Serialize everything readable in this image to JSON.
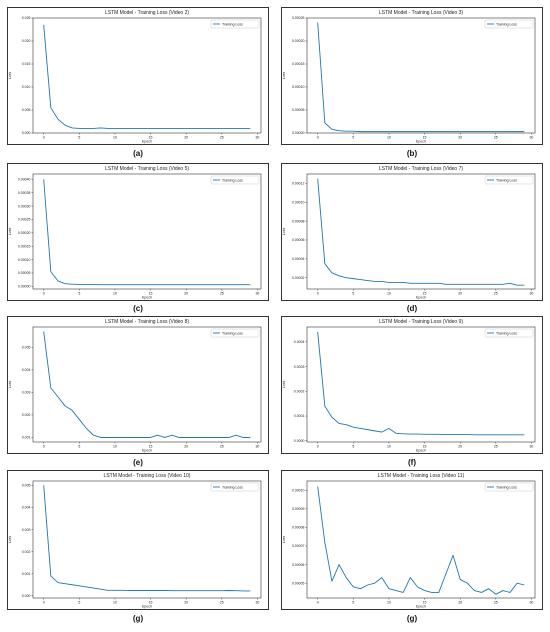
{
  "chart_data": [
    {
      "type": "line",
      "title": "LSTM Model - Training Loss (Video 2)",
      "xlabel": "Epoch",
      "ylabel": "Loss",
      "legend": "top-right",
      "series": [
        {
          "name": "Training Loss",
          "x": [
            0,
            1,
            2,
            3,
            4,
            5,
            6,
            7,
            8,
            9,
            10,
            11,
            12,
            13,
            14,
            15,
            16,
            17,
            18,
            19,
            20,
            21,
            22,
            23,
            24,
            25,
            26,
            27,
            28,
            29
          ],
          "y": [
            0.0235,
            0.0055,
            0.003,
            0.0017,
            0.0011,
            0.001,
            0.001,
            0.001,
            0.0011,
            0.001,
            0.001,
            0.001,
            0.001,
            0.001,
            0.001,
            0.001,
            0.001,
            0.001,
            0.001,
            0.001,
            0.001,
            0.001,
            0.001,
            0.001,
            0.001,
            0.001,
            0.001,
            0.001,
            0.001,
            0.001
          ]
        }
      ],
      "xticks": [
        "0",
        "5",
        "10",
        "15",
        "20",
        "25",
        "30"
      ],
      "xtick_values": [
        0,
        5,
        10,
        15,
        20,
        25,
        30
      ],
      "yticks": [
        "0.000",
        "0.005",
        "0.010",
        "0.015",
        "0.020",
        "0.025"
      ],
      "ytick_values": [
        0,
        0.005,
        0.01,
        0.015,
        0.02,
        0.025
      ],
      "xlim": [
        -1.5,
        30.5
      ],
      "ylim": [
        0,
        0.025
      ],
      "caption": "(a)"
    },
    {
      "type": "line",
      "title": "LSTM Model - Training Loss (Video 3)",
      "xlabel": "Epoch",
      "ylabel": "Loss",
      "legend": "top-right",
      "series": [
        {
          "name": "Training Loss",
          "x": [
            0,
            1,
            2,
            3,
            4,
            5,
            6,
            7,
            8,
            9,
            10,
            11,
            12,
            13,
            14,
            15,
            16,
            17,
            18,
            19,
            20,
            21,
            22,
            23,
            24,
            25,
            26,
            27,
            28,
            29
          ],
          "y": [
            0.00024,
            2.2e-05,
            8e-06,
            5e-06,
            4e-06,
            4e-06,
            3e-06,
            3e-06,
            3e-06,
            3e-06,
            3e-06,
            3e-06,
            3e-06,
            3e-06,
            3e-06,
            3e-06,
            3e-06,
            3e-06,
            3e-06,
            3e-06,
            3e-06,
            3e-06,
            3e-06,
            3e-06,
            3e-06,
            3e-06,
            3e-06,
            3e-06,
            3e-06,
            3e-06
          ]
        }
      ],
      "xticks": [
        "0",
        "5",
        "10",
        "15",
        "20",
        "25",
        "30"
      ],
      "xtick_values": [
        0,
        5,
        10,
        15,
        20,
        25,
        30
      ],
      "yticks": [
        "0.00000",
        "0.00005",
        "0.00010",
        "0.00015",
        "0.00020",
        "0.00025"
      ],
      "ytick_values": [
        0,
        5e-05,
        0.0001,
        0.00015,
        0.0002,
        0.00025
      ],
      "xlim": [
        -1.5,
        30.5
      ],
      "ylim": [
        0,
        0.00025
      ],
      "caption": "(b)"
    },
    {
      "type": "line",
      "title": "LSTM Model - Training Loss (Video 5)",
      "xlabel": "Epoch",
      "ylabel": "Loss",
      "legend": "top-right",
      "series": [
        {
          "name": "Training Loss",
          "x": [
            0,
            1,
            2,
            3,
            4,
            5,
            6,
            7,
            8,
            9,
            10,
            11,
            12,
            13,
            14,
            15,
            16,
            17,
            18,
            19,
            20,
            21,
            22,
            23,
            24,
            25,
            26,
            27,
            28,
            29
          ],
          "y": [
            0.0004,
            5.5e-05,
            2e-05,
            1e-05,
            8e-06,
            7e-06,
            7e-06,
            7e-06,
            6e-06,
            6e-06,
            6e-06,
            6e-06,
            6e-06,
            6e-06,
            6e-06,
            6e-06,
            6e-06,
            6e-06,
            6e-06,
            6e-06,
            6e-06,
            6e-06,
            6e-06,
            6e-06,
            6e-06,
            6e-06,
            6e-06,
            6e-06,
            6e-06,
            6e-06
          ]
        }
      ],
      "xticks": [
        "0",
        "5",
        "10",
        "15",
        "20",
        "25",
        "30"
      ],
      "xtick_values": [
        0,
        5,
        10,
        15,
        20,
        25,
        30
      ],
      "yticks": [
        "0.00000",
        "0.00005",
        "0.00010",
        "0.00015",
        "0.00020",
        "0.00025",
        "0.00030",
        "0.00035",
        "0.00040"
      ],
      "ytick_values": [
        0,
        5e-05,
        0.0001,
        0.00015,
        0.0002,
        0.00025,
        0.0003,
        0.00035,
        0.0004
      ],
      "xlim": [
        -1.5,
        30.5
      ],
      "ylim": [
        -1e-05,
        0.00042
      ],
      "caption": "(c)"
    },
    {
      "type": "line",
      "title": "LSTM Model - Training Loss (Video 7)",
      "xlabel": "Epoch",
      "ylabel": "Loss",
      "legend": "top-right",
      "series": [
        {
          "name": "Training Loss",
          "x": [
            0,
            1,
            2,
            3,
            4,
            5,
            6,
            7,
            8,
            9,
            10,
            11,
            12,
            13,
            14,
            15,
            16,
            17,
            18,
            19,
            20,
            21,
            22,
            23,
            24,
            25,
            26,
            27,
            28,
            29
          ],
          "y": [
            0.000125,
            3.5e-05,
            2.5e-05,
            2.2e-05,
            2e-05,
            1.9e-05,
            1.8e-05,
            1.7e-05,
            1.6e-05,
            1.6e-05,
            1.5e-05,
            1.5e-05,
            1.5e-05,
            1.4e-05,
            1.4e-05,
            1.4e-05,
            1.4e-05,
            1.4e-05,
            1.3e-05,
            1.3e-05,
            1.3e-05,
            1.3e-05,
            1.3e-05,
            1.3e-05,
            1.3e-05,
            1.3e-05,
            1.3e-05,
            1.4e-05,
            1.2e-05,
            1.2e-05
          ]
        }
      ],
      "xticks": [
        "0",
        "5",
        "10",
        "15",
        "20",
        "25",
        "30"
      ],
      "xtick_values": [
        0,
        5,
        10,
        15,
        20,
        25,
        30
      ],
      "yticks": [
        "0.00002",
        "0.00004",
        "0.00006",
        "0.00008",
        "0.00010",
        "0.00012"
      ],
      "ytick_values": [
        2e-05,
        4e-05,
        6e-05,
        8e-05,
        0.0001,
        0.00012
      ],
      "xlim": [
        -1.5,
        30.5
      ],
      "ylim": [
        8e-06,
        0.00013
      ],
      "caption": "(d)"
    },
    {
      "type": "line",
      "title": "LSTM Model - Training Loss (Video 8)",
      "xlabel": "Epoch",
      "ylabel": "Loss",
      "legend": "top-right",
      "series": [
        {
          "name": "Training Loss",
          "x": [
            0,
            1,
            2,
            3,
            4,
            5,
            6,
            7,
            8,
            9,
            10,
            11,
            12,
            13,
            14,
            15,
            16,
            17,
            18,
            19,
            20,
            21,
            22,
            23,
            24,
            25,
            26,
            27,
            28,
            29
          ],
          "y": [
            0.0057,
            0.0032,
            0.0028,
            0.0024,
            0.0022,
            0.0018,
            0.0014,
            0.0011,
            0.001,
            0.001,
            0.001,
            0.001,
            0.001,
            0.001,
            0.001,
            0.001,
            0.0011,
            0.001,
            0.0011,
            0.001,
            0.001,
            0.001,
            0.001,
            0.001,
            0.001,
            0.001,
            0.001,
            0.0011,
            0.001,
            0.001
          ]
        }
      ],
      "xticks": [
        "0",
        "5",
        "10",
        "15",
        "20",
        "25",
        "30"
      ],
      "xtick_values": [
        0,
        5,
        10,
        15,
        20,
        25,
        30
      ],
      "yticks": [
        "0.001",
        "0.002",
        "0.003",
        "0.004",
        "0.005"
      ],
      "ytick_values": [
        0.001,
        0.002,
        0.003,
        0.004,
        0.005
      ],
      "xlim": [
        -1.5,
        30.5
      ],
      "ylim": [
        0.0008,
        0.0059
      ],
      "caption": "(e)"
    },
    {
      "type": "line",
      "title": "LSTM Model - Training Loss (Video 9)",
      "xlabel": "Epoch",
      "ylabel": "Loss",
      "legend": "top-right",
      "series": [
        {
          "name": "Training Loss",
          "x": [
            0,
            1,
            2,
            3,
            4,
            5,
            6,
            7,
            8,
            9,
            10,
            11,
            12,
            13,
            14,
            15,
            16,
            17,
            18,
            19,
            20,
            21,
            22,
            23,
            24,
            25,
            26,
            27,
            28,
            29
          ],
          "y": [
            0.00044,
            0.00014,
            9.5e-05,
            7e-05,
            6.5e-05,
            5.5e-05,
            5e-05,
            4.5e-05,
            4e-05,
            3.5e-05,
            5e-05,
            3e-05,
            2.8e-05,
            2.7e-05,
            2.7e-05,
            2.6e-05,
            2.6e-05,
            2.6e-05,
            2.5e-05,
            2.5e-05,
            2.5e-05,
            2.5e-05,
            2.4e-05,
            2.4e-05,
            2.4e-05,
            2.4e-05,
            2.4e-05,
            2.4e-05,
            2.4e-05,
            2.4e-05
          ]
        }
      ],
      "xticks": [
        "0",
        "5",
        "10",
        "15",
        "20",
        "25",
        "30"
      ],
      "xtick_values": [
        0,
        5,
        10,
        15,
        20,
        25,
        30
      ],
      "yticks": [
        "0.0000",
        "0.0001",
        "0.0002",
        "0.0003",
        "0.0004"
      ],
      "ytick_values": [
        0,
        0.0001,
        0.0002,
        0.0003,
        0.0004
      ],
      "xlim": [
        -1.5,
        30.5
      ],
      "ylim": [
        -5e-06,
        0.00046
      ],
      "caption": "(f)"
    },
    {
      "type": "line",
      "title": "LSTM Model - Training Loss (Video 10)",
      "xlabel": "Epoch",
      "ylabel": "Loss",
      "legend": "top-right",
      "series": [
        {
          "name": "Training Loss",
          "x": [
            0,
            1,
            2,
            3,
            4,
            5,
            6,
            7,
            8,
            9,
            10,
            11,
            12,
            13,
            14,
            15,
            16,
            17,
            18,
            19,
            20,
            21,
            22,
            23,
            24,
            25,
            26,
            27,
            28,
            29
          ],
          "y": [
            0.005,
            0.0009,
            0.0006,
            0.00055,
            0.0005,
            0.00045,
            0.0004,
            0.00035,
            0.0003,
            0.00025,
            0.00025,
            0.00025,
            0.00024,
            0.00024,
            0.00024,
            0.00024,
            0.00024,
            0.00024,
            0.00023,
            0.00023,
            0.00023,
            0.00023,
            0.00023,
            0.00023,
            0.00023,
            0.00023,
            0.00024,
            0.00023,
            0.00022,
            0.00022
          ]
        }
      ],
      "xticks": [
        "0",
        "5",
        "10",
        "15",
        "20",
        "25",
        "30"
      ],
      "xtick_values": [
        0,
        5,
        10,
        15,
        20,
        25,
        30
      ],
      "yticks": [
        "0.000",
        "0.001",
        "0.002",
        "0.003",
        "0.004",
        "0.005"
      ],
      "ytick_values": [
        0,
        0.001,
        0.002,
        0.003,
        0.004,
        0.005
      ],
      "xlim": [
        -1.5,
        30.5
      ],
      "ylim": [
        -0.0001,
        0.0052
      ],
      "caption": "(g)"
    },
    {
      "type": "line",
      "title": "LSTM Model - Training Loss (Video 11)",
      "xlabel": "Epoch",
      "ylabel": "Loss",
      "legend": "top-right",
      "series": [
        {
          "name": "Training Loss",
          "x": [
            0,
            1,
            2,
            3,
            4,
            5,
            6,
            7,
            8,
            9,
            10,
            11,
            12,
            13,
            14,
            15,
            16,
            17,
            18,
            19,
            20,
            21,
            22,
            23,
            24,
            25,
            26,
            27,
            28,
            29
          ],
          "y": [
            0.000102,
            7.2e-05,
            5.1e-05,
            6e-05,
            5.3e-05,
            4.8e-05,
            4.7e-05,
            4.9e-05,
            5e-05,
            5.3e-05,
            4.7e-05,
            4.6e-05,
            4.5e-05,
            5.3e-05,
            4.8e-05,
            4.6e-05,
            4.5e-05,
            4.5e-05,
            5.5e-05,
            6.5e-05,
            5.2e-05,
            5e-05,
            4.6e-05,
            4.5e-05,
            4.7e-05,
            4.4e-05,
            4.6e-05,
            4.5e-05,
            5e-05,
            4.9e-05
          ]
        }
      ],
      "xticks": [
        "0",
        "5",
        "10",
        "15",
        "20",
        "25",
        "30"
      ],
      "xtick_values": [
        0,
        5,
        10,
        15,
        20,
        25,
        30
      ],
      "yticks": [
        "0.00005",
        "0.00006",
        "0.00007",
        "0.00008",
        "0.00009",
        "0.00010"
      ],
      "ytick_values": [
        5e-05,
        6e-05,
        7e-05,
        8e-05,
        9e-05,
        0.0001
      ],
      "xlim": [
        -1.5,
        30.5
      ],
      "ylim": [
        4.2e-05,
        0.000105
      ],
      "caption": "(g)"
    }
  ]
}
